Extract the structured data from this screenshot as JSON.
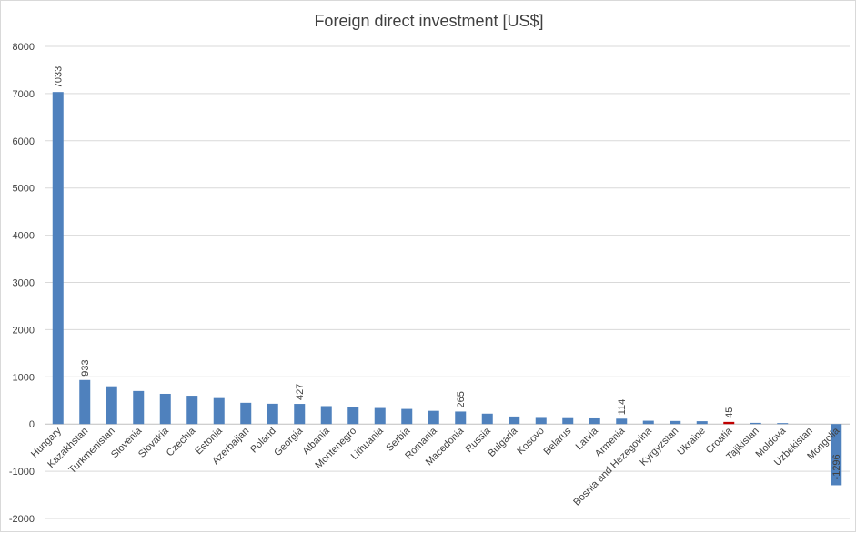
{
  "chart_data": {
    "type": "bar",
    "title": "Foreign  direct investment [US$]",
    "xlabel": "",
    "ylabel": "",
    "ylim": [
      -2000,
      8000
    ],
    "yticks": [
      -2000,
      -1000,
      0,
      1000,
      2000,
      3000,
      4000,
      5000,
      6000,
      7000,
      8000
    ],
    "grid": true,
    "legend": "none",
    "categories": [
      "Hungary",
      "Kazakhstan",
      "Turkmenistan",
      "Slovenia",
      "Slovakia",
      "Czechia",
      "Estonia",
      "Azerbaijan",
      "Poland",
      "Georgia",
      "Albania",
      "Montenegro",
      "Lithuania",
      "Serbia",
      "Romania",
      "Macedonia",
      "Russia",
      "Bulgaria",
      "Kosovo",
      "Belarus",
      "Latvia",
      "Armenia",
      "Bosnia and Hezegovina",
      "Kyrgyzstan",
      "Ukraine",
      "Croatia",
      "Tajikistan",
      "Moldova",
      "Uzbekistan",
      "Mongolia"
    ],
    "values": [
      7033,
      933,
      800,
      700,
      640,
      600,
      550,
      450,
      430,
      427,
      380,
      360,
      340,
      320,
      280,
      265,
      220,
      160,
      130,
      125,
      120,
      114,
      70,
      65,
      60,
      45,
      25,
      20,
      0,
      -1296
    ],
    "data_labels": {
      "Hungary": "7033",
      "Kazakhstan": "933",
      "Georgia": "427",
      "Macedonia": "265",
      "Armenia": "114",
      "Croatia": "45",
      "Mongolia": "-1296"
    },
    "colors": {
      "default": "#4f81bd",
      "highlight": "#c00000"
    },
    "highlight_category": "Croatia"
  }
}
